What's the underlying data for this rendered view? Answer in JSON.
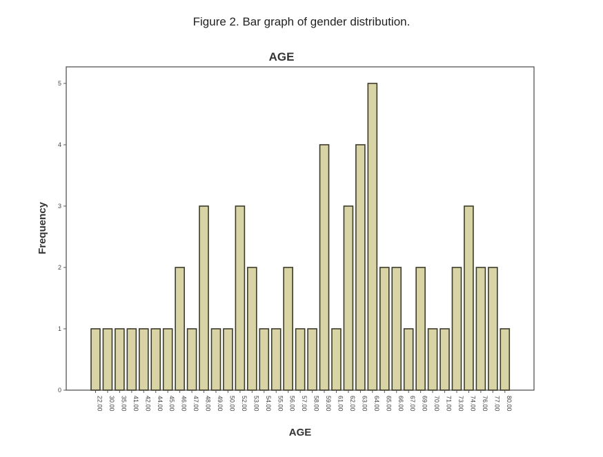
{
  "caption": {
    "label": "Figure 2",
    "text": ". Bar graph of gender distribution."
  },
  "chart_data": {
    "type": "bar",
    "title": "AGE",
    "xlabel": "AGE",
    "ylabel": "Frequency",
    "ylim": [
      0,
      5.5
    ],
    "yticks": [
      0,
      1,
      2,
      3,
      4,
      5
    ],
    "grid": false,
    "categories": [
      "22.00",
      "30.00",
      "35.00",
      "41.00",
      "42.00",
      "44.00",
      "45.00",
      "46.00",
      "47.00",
      "48.00",
      "49.00",
      "50.00",
      "52.00",
      "53.00",
      "54.00",
      "55.00",
      "56.00",
      "57.00",
      "58.00",
      "59.00",
      "61.00",
      "62.00",
      "63.00",
      "64.00",
      "65.00",
      "66.00",
      "67.00",
      "69.00",
      "70.00",
      "71.00",
      "73.00",
      "74.00",
      "76.00",
      "77.00",
      "80.00"
    ],
    "values": [
      1,
      1,
      1,
      1,
      1,
      1,
      1,
      2,
      1,
      3,
      1,
      1,
      3,
      2,
      1,
      1,
      2,
      1,
      1,
      4,
      1,
      3,
      4,
      5,
      2,
      2,
      1,
      2,
      1,
      1,
      2,
      3,
      2,
      2,
      1
    ],
    "bar_color": "#d9d4a6",
    "bar_edge": "#3a3a2a"
  }
}
